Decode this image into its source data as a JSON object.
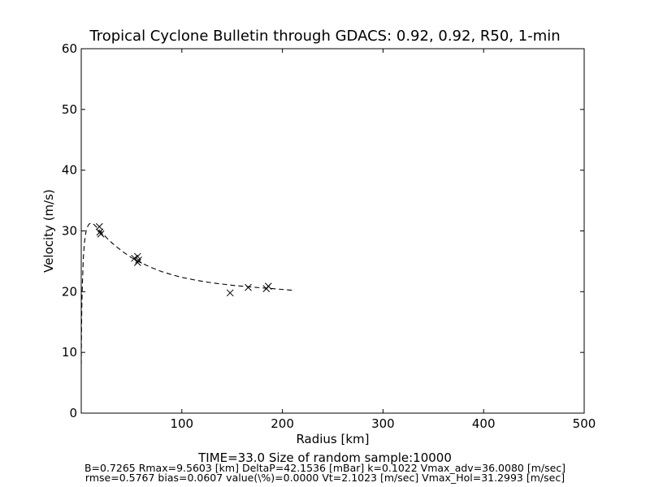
{
  "chart_data": {
    "type": "scatter",
    "title": "Tropical Cyclone Bulletin through GDACS: 0.92, 0.92, R50, 1-min",
    "xlabel": "Radius [km]",
    "ylabel": "Velocity (m/s)",
    "xlim": [
      0,
      500
    ],
    "ylim": [
      0,
      60
    ],
    "x_ticks": [
      100,
      200,
      300,
      400,
      500
    ],
    "y_ticks": [
      0,
      10,
      20,
      30,
      40,
      50,
      60
    ],
    "grid": false,
    "legend": "none",
    "series": [
      {
        "style": "dashed line",
        "color": "#000000",
        "points": [
          [
            0,
            8
          ],
          [
            0.3,
            14
          ],
          [
            0.6,
            18
          ],
          [
            1,
            20.5
          ],
          [
            2,
            25.3
          ],
          [
            3,
            27.8
          ],
          [
            4,
            29.2
          ],
          [
            5,
            30.1
          ],
          [
            6,
            30.6
          ],
          [
            7,
            30.95
          ],
          [
            8,
            31.15
          ],
          [
            9,
            31.25
          ],
          [
            9.56,
            31.29
          ],
          [
            11,
            31.25
          ],
          [
            13,
            31.0
          ],
          [
            16,
            30.5
          ],
          [
            20,
            29.8
          ],
          [
            25,
            28.9
          ],
          [
            30,
            28.1
          ],
          [
            35,
            27.4
          ],
          [
            40,
            26.75
          ],
          [
            45,
            26.15
          ],
          [
            50,
            25.6
          ],
          [
            60,
            24.7
          ],
          [
            70,
            23.95
          ],
          [
            80,
            23.3
          ],
          [
            90,
            22.8
          ],
          [
            100,
            22.35
          ],
          [
            115,
            21.85
          ],
          [
            130,
            21.45
          ],
          [
            150,
            21.05
          ],
          [
            170,
            20.75
          ],
          [
            190,
            20.5
          ],
          [
            212,
            20.2
          ]
        ]
      },
      {
        "style": "x markers",
        "color": "#000000",
        "points": [
          [
            18,
            30.7
          ],
          [
            18.5,
            29.8
          ],
          [
            19.5,
            29.5
          ],
          [
            53,
            25.5
          ],
          [
            56,
            25.8
          ],
          [
            56,
            24.8
          ],
          [
            57,
            25.2
          ],
          [
            148,
            19.8
          ],
          [
            166,
            20.7
          ],
          [
            184,
            20.5
          ],
          [
            186,
            20.9
          ]
        ]
      }
    ]
  },
  "footer": {
    "time_line": "TIME=33.0      Size of random sample:10000",
    "params_line": "B=0.7265 Rmax=9.5603 [km]  DeltaP=42.1536 [mBar] k=0.1022 Vmax_adv=36.0080 [m/sec]",
    "stats_line": "rmse=0.5767 bias=0.0607 value(\\%)=0.0000 Vt=2.1023 [m/sec] Vmax_Hol=31.2993 [m/sec]"
  }
}
